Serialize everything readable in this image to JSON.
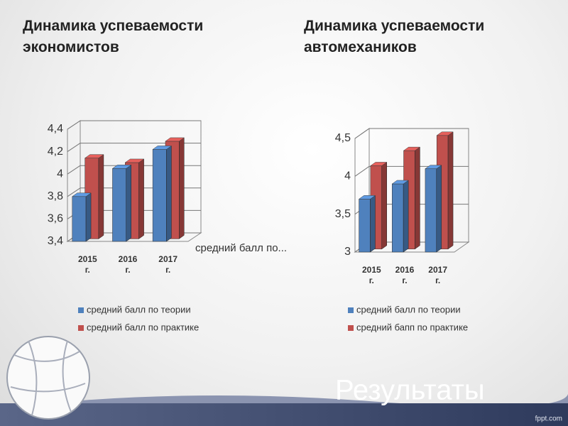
{
  "chart_data": [
    {
      "type": "bar3d",
      "title": "Динамика успеваемости экономистов",
      "categories": [
        "2015 г.",
        "2016 г.",
        "2017 г."
      ],
      "series": [
        {
          "name": "средний балл по теории",
          "color": "#4f81bd",
          "values": [
            3.8,
            4.05,
            4.22
          ]
        },
        {
          "name": "средний балл по практике",
          "color": "#c0504d",
          "values": [
            4.12,
            4.08,
            4.27
          ]
        }
      ],
      "ylim": [
        3.4,
        4.4
      ],
      "yticks": [
        {
          "value": 3.4,
          "label": "3,4"
        },
        {
          "value": 3.6,
          "label": "3,6"
        },
        {
          "value": 3.8,
          "label": "3,8"
        },
        4,
        {
          "value": 4.2,
          "label": "4,2"
        },
        {
          "value": 4.4,
          "label": "4,4"
        }
      ],
      "grid": true,
      "annotation": "средний балл по..."
    },
    {
      "type": "bar3d",
      "title": "Динамика успеваемости автомехаников",
      "categories": [
        "2015 г.",
        "2016 г.",
        "2017 г."
      ],
      "series": [
        {
          "name": "средний балл по теории",
          "color": "#4f81bd",
          "values": [
            3.7,
            3.9,
            4.1
          ]
        },
        {
          "name": "средний бапп по практике",
          "color": "#c0504d",
          "values": [
            4.1,
            4.3,
            4.5
          ]
        }
      ],
      "ylim": [
        3,
        4.5
      ],
      "yticks": [
        3,
        {
          "value": 3.5,
          "label": "3,5"
        },
        4,
        {
          "value": 4.5,
          "label": "4,5"
        }
      ],
      "grid": true
    }
  ],
  "slide": {
    "heading": "Результаты",
    "watermark": "fppt.com"
  }
}
